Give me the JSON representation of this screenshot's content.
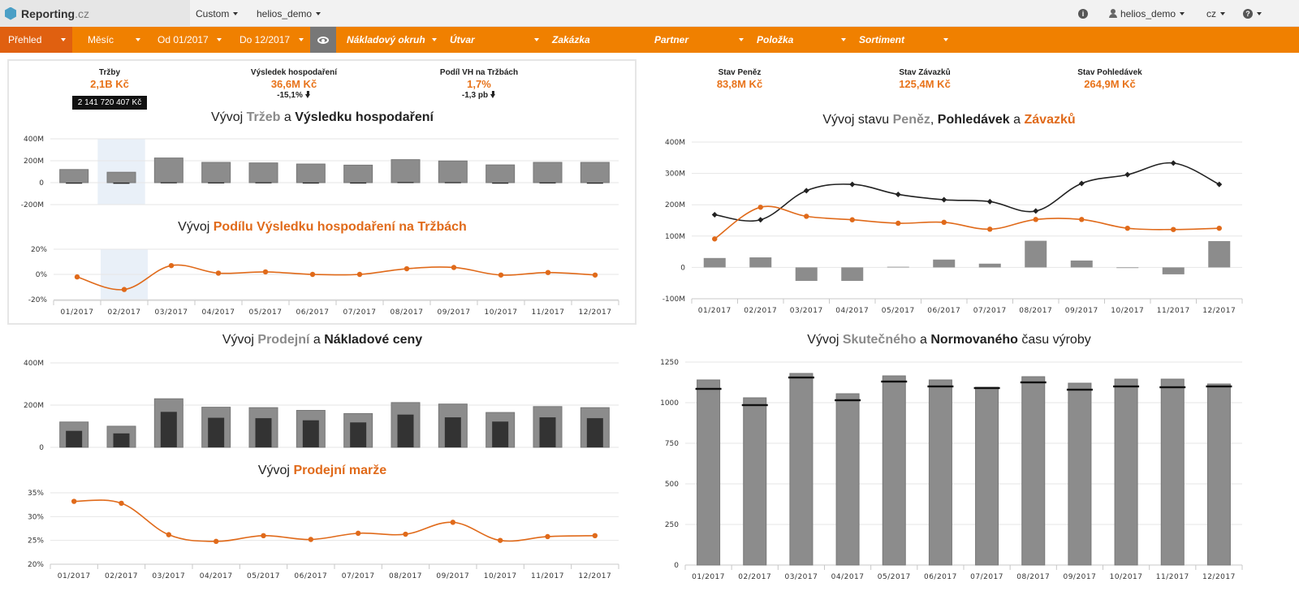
{
  "app": {
    "brand": "Reporting",
    "brand_suffix": ".cz",
    "menu_custom": "Custom",
    "menu_db": "helios_demo",
    "user": "helios_demo",
    "lang": "cz"
  },
  "filters": {
    "overview": "Přehled",
    "period": "Měsíc",
    "from": "Od 01/2017",
    "to": "Do 12/2017",
    "cost_area": "Nákladový okruh",
    "unit": "Útvar",
    "order": "Zakázka",
    "partner": "Partner",
    "item": "Položka",
    "assortment": "Sortiment"
  },
  "kpis": {
    "revenue": {
      "label": "Tržby",
      "value": "2,1B Kč",
      "tooltip": "2 141 720 407 Kč"
    },
    "profit": {
      "label": "Výsledek hospodaření",
      "value": "36,6M Kč",
      "change": "-15,1%"
    },
    "share": {
      "label": "Podíl VH na Tržbách",
      "value": "1,7%",
      "change": "-1,3 pb"
    },
    "cash": {
      "label": "Stav Peněz",
      "value": "83,8M Kč"
    },
    "liabilities": {
      "label": "Stav Závazků",
      "value": "125,4M Kč"
    },
    "receivables": {
      "label": "Stav Pohledávek",
      "value": "264,9M Kč"
    }
  },
  "titles": {
    "c1": {
      "a": "Vývoj ",
      "b": "Tržeb",
      "c": " a ",
      "d": "Výsledku hospodaření"
    },
    "c2": {
      "a": "Vývoj ",
      "b": "Podílu Výsledku hospodaření na Tržbách"
    },
    "c3": {
      "a": "Vývoj stavu ",
      "b": "Peněz",
      "c": ", ",
      "d": "Pohledávek",
      "e": " a ",
      "f": "Závazků"
    },
    "c4": {
      "a": "Vývoj ",
      "b": "Prodejní",
      "c": " a ",
      "d": "Nákladové ceny"
    },
    "c5": {
      "a": "Vývoj ",
      "b": "Prodejní marže"
    },
    "c6": {
      "a": "Vývoj ",
      "b": "Skutečného",
      "c": " a ",
      "d": "Normovaného",
      "e": " času výroby"
    }
  },
  "colors": {
    "orange": "#f08000",
    "orange_line": "#e06a1a",
    "bar_gray": "#8c8c8c",
    "bar_dark": "#333333",
    "line_dark": "#222222"
  },
  "chart_data": [
    {
      "id": "revenue_profit",
      "type": "bar",
      "categories": [
        "01/2017",
        "02/2017",
        "03/2017",
        "04/2017",
        "05/2017",
        "06/2017",
        "07/2017",
        "08/2017",
        "09/2017",
        "10/2017",
        "11/2017",
        "12/2017"
      ],
      "series": [
        {
          "values": [
            120,
            95,
            225,
            185,
            180,
            170,
            160,
            210,
            198,
            162,
            185,
            185
          ]
        },
        {
          "values": [
            -3,
            -10,
            3,
            2,
            3,
            1,
            1,
            5,
            4,
            -1,
            2,
            0
          ]
        }
      ],
      "ylim": [
        -200,
        400
      ],
      "yticks": [
        "-200M",
        "0",
        "200M",
        "400M"
      ],
      "grid": true,
      "highlight_index": 1
    },
    {
      "id": "profit_share",
      "type": "line",
      "categories": [
        "01/2017",
        "02/2017",
        "03/2017",
        "04/2017",
        "05/2017",
        "06/2017",
        "07/2017",
        "08/2017",
        "09/2017",
        "10/2017",
        "11/2017",
        "12/2017"
      ],
      "series": [
        {
          "values": [
            -2,
            -12,
            7,
            1,
            2,
            0,
            0,
            4.5,
            5.5,
            -0.5,
            1.5,
            -0.5
          ]
        }
      ],
      "ylim": [
        -20,
        20
      ],
      "yticks": [
        "-20%",
        "0%",
        "20%"
      ],
      "grid": true,
      "highlight_index": 1
    },
    {
      "id": "cash_receivables_liabilities",
      "type": "line",
      "categories": [
        "01/2017",
        "02/2017",
        "03/2017",
        "04/2017",
        "05/2017",
        "06/2017",
        "07/2017",
        "08/2017",
        "09/2017",
        "10/2017",
        "11/2017",
        "12/2017"
      ],
      "series": [
        {
          "kind": "bar",
          "values": [
            30,
            32,
            -43,
            -43,
            2,
            25,
            12,
            85,
            22,
            -2,
            -22,
            84
          ]
        },
        {
          "kind": "line",
          "values": [
            168,
            152,
            245,
            265,
            233,
            216,
            210,
            180,
            268,
            296,
            333,
            265
          ]
        },
        {
          "kind": "line",
          "values": [
            91,
            192,
            163,
            152,
            141,
            144,
            122,
            153,
            153,
            125,
            121,
            125
          ]
        }
      ],
      "ylim": [
        -100,
        400
      ],
      "yticks": [
        "-100M",
        "0",
        "100M",
        "200M",
        "300M",
        "400M"
      ],
      "grid": true
    },
    {
      "id": "sale_cost_price",
      "type": "bar",
      "categories": [
        "01/2017",
        "02/2017",
        "03/2017",
        "04/2017",
        "05/2017",
        "06/2017",
        "07/2017",
        "08/2017",
        "09/2017",
        "10/2017",
        "11/2017",
        "12/2017"
      ],
      "series": [
        {
          "values": [
            120,
            100,
            230,
            190,
            188,
            175,
            160,
            212,
            205,
            165,
            193,
            188
          ]
        },
        {
          "values": [
            78,
            66,
            168,
            140,
            138,
            128,
            118,
            155,
            142,
            122,
            142,
            138
          ]
        }
      ],
      "ylim": [
        0,
        400
      ],
      "yticks": [
        "0",
        "200M",
        "400M"
      ],
      "grid": true
    },
    {
      "id": "sale_margin",
      "type": "line",
      "categories": [
        "01/2017",
        "02/2017",
        "03/2017",
        "04/2017",
        "05/2017",
        "06/2017",
        "07/2017",
        "08/2017",
        "09/2017",
        "10/2017",
        "11/2017",
        "12/2017"
      ],
      "series": [
        {
          "values": [
            33.2,
            32.8,
            26.2,
            24.8,
            26.0,
            25.2,
            26.5,
            26.3,
            28.8,
            25.0,
            25.8,
            26.0
          ]
        }
      ],
      "ylim": [
        20,
        35
      ],
      "yticks": [
        "20%",
        "25%",
        "30%",
        "35%"
      ],
      "grid": true
    },
    {
      "id": "production_time",
      "type": "bar",
      "categories": [
        "01/2017",
        "02/2017",
        "03/2017",
        "04/2017",
        "05/2017",
        "06/2017",
        "07/2017",
        "08/2017",
        "09/2017",
        "10/2017",
        "11/2017",
        "12/2017"
      ],
      "series": [
        {
          "values": [
            1140,
            1030,
            1180,
            1055,
            1165,
            1140,
            1095,
            1160,
            1120,
            1145,
            1145,
            1115
          ]
        },
        {
          "values": [
            1085,
            985,
            1155,
            1015,
            1130,
            1100,
            1090,
            1125,
            1080,
            1100,
            1095,
            1100
          ]
        }
      ],
      "ylim": [
        0,
        1250
      ],
      "yticks": [
        "0",
        "250",
        "500",
        "750",
        "1000",
        "1250"
      ],
      "grid": true
    }
  ]
}
